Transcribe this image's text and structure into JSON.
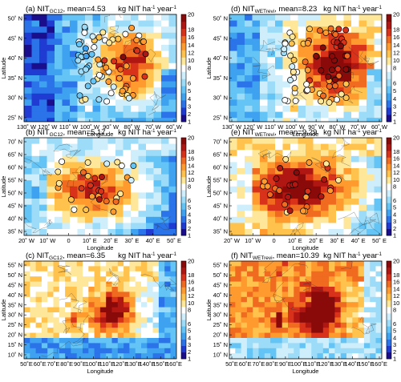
{
  "colorbar": {
    "ticks": [
      "1",
      "2",
      "3",
      "4",
      "5",
      "6",
      "8",
      "10",
      "12",
      "14",
      "16",
      "18",
      "20"
    ],
    "colors": [
      "#1a0e8c",
      "#1f3bd1",
      "#2a73e8",
      "#3ea2f0",
      "#63c4f5",
      "#9cdcf8",
      "#cfeefb",
      "#ffffff",
      "#ffe79a",
      "#ffc24d",
      "#ff9a2e",
      "#f06a1f",
      "#d8321a",
      "#b01612",
      "#8a0a0a"
    ]
  },
  "chart_data": [
    {
      "type": "heatmap",
      "panel": "(a)",
      "title_main": "(a) NIT",
      "title_sub": "GC12",
      "title_mean": ", mean=4.53",
      "units_text": "kg NIT ha",
      "units_sup1": "-1",
      "units_mid": " year",
      "units_sup2": "-1",
      "xlabel": "Longitude",
      "ylabel": "Latitude",
      "xticks": [
        "130˚ W",
        "120˚ W",
        "110˚ W",
        "100˚ W",
        "90˚ W",
        "80˚ W",
        "70˚ W",
        "60˚ W"
      ],
      "yticks": [
        "50˚ N",
        "45˚ N",
        "40˚ N",
        "35˚ N",
        "30˚ N",
        "25˚ N"
      ],
      "region": "us",
      "mean": 4.53
    },
    {
      "type": "heatmap",
      "panel": "(d)",
      "title_main": "(d) NIT",
      "title_sub": "WETrevi",
      "title_mean": ", mean=8.23",
      "units_text": "kg NIT ha",
      "units_sup1": "-1",
      "units_mid": " year",
      "units_sup2": "-1",
      "xlabel": "Longitude",
      "ylabel": "Latitude",
      "xticks": [
        "130˚ W",
        "120˚ W",
        "110˚ W",
        "100˚ W",
        "90˚ W",
        "80˚ W",
        "70˚ W",
        "60˚ W"
      ],
      "yticks": [
        "50˚ N",
        "45˚ N",
        "40˚ N",
        "35˚ N",
        "30˚ N",
        "25˚ N"
      ],
      "region": "us",
      "mean": 8.23
    },
    {
      "type": "heatmap",
      "panel": "(b)",
      "title_main": "(b) NIT",
      "title_sub": "GC12",
      "title_mean": ", mean=5.17",
      "units_text": "kg NIT ha",
      "units_sup1": "-1",
      "units_mid": " year",
      "units_sup2": "-1",
      "xlabel": "Longitude",
      "ylabel": "Latitude",
      "xticks": [
        "20˚ W",
        "10˚ W",
        "0",
        "10˚ E",
        "20˚ E",
        "30˚ E",
        "40˚ E",
        "50˚ E"
      ],
      "yticks": [
        "70˚ N",
        "65˚ N",
        "60˚ N",
        "55˚ N",
        "50˚ N",
        "45˚ N",
        "40˚ N",
        "35˚ N"
      ],
      "region": "eu",
      "mean": 5.17
    },
    {
      "type": "heatmap",
      "panel": "(e)",
      "title_main": "(e) NIT",
      "title_sub": "WETrevi",
      "title_mean": ", mean=9.29",
      "units_text": "kg NIT ha",
      "units_sup1": "-1",
      "units_mid": " year",
      "units_sup2": "-1",
      "xlabel": "Longitude",
      "ylabel": "Latitude",
      "xticks": [
        "20˚ W",
        "10˚ W",
        "0",
        "10˚ E",
        "20˚ E",
        "30˚ E",
        "40˚ E",
        "50˚ E"
      ],
      "yticks": [
        "70˚ N",
        "65˚ N",
        "60˚ N",
        "55˚ N",
        "50˚ N",
        "45˚ N",
        "40˚ N",
        "35˚ N"
      ],
      "region": "eu",
      "mean": 9.29
    },
    {
      "type": "heatmap",
      "panel": "(c)",
      "title_main": "(c) NIT",
      "title_sub": "GC12",
      "title_mean": ", mean=6.35",
      "units_text": "kg NIT ha",
      "units_sup1": "-1",
      "units_mid": " year",
      "units_sup2": "-1",
      "xlabel": "Longitude",
      "ylabel": "Latitude",
      "xticks": [
        "50˚E",
        "60˚E",
        "70˚E",
        "80˚E",
        "90˚E",
        "100˚E",
        "110˚E",
        "120˚E",
        "130˚E",
        "140˚E",
        "150˚E",
        "160˚E"
      ],
      "yticks": [
        "55˚ N",
        "50˚ N",
        "45˚ N",
        "40˚ N",
        "35˚ N",
        "30˚ N",
        "25˚ N",
        "20˚ N",
        "15˚ N",
        "10˚ N"
      ],
      "region": "asia",
      "mean": 6.35
    },
    {
      "type": "heatmap",
      "panel": "(f)",
      "title_main": "(f) NIT",
      "title_sub": "WETrevi",
      "title_mean": ", mean=10.39",
      "units_text": "kg NIT ha",
      "units_sup1": "-1",
      "units_mid": " year",
      "units_sup2": "-1",
      "xlabel": "Longitude",
      "ylabel": "Latitude",
      "xticks": [
        "50˚E",
        "60˚E",
        "70˚E",
        "80˚E",
        "90˚E",
        "100˚E",
        "110˚E",
        "120˚E",
        "130˚E",
        "140˚E",
        "150˚E",
        "160˚E"
      ],
      "yticks": [
        "55˚ N",
        "50˚ N",
        "45˚ N",
        "40˚ N",
        "35˚ N",
        "30˚ N",
        "25˚ N",
        "20˚ N",
        "15˚ N",
        "10˚ N"
      ],
      "region": "asia",
      "mean": 10.39
    }
  ]
}
